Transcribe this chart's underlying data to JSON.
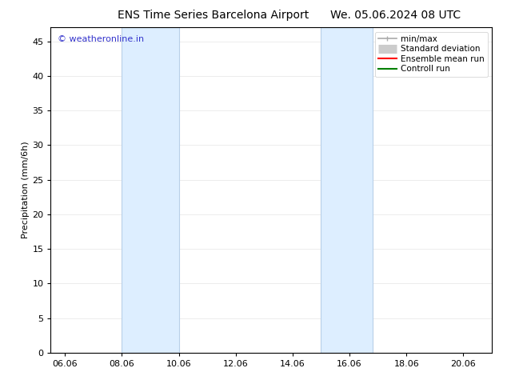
{
  "title_left": "ENS Time Series Barcelona Airport",
  "title_right": "We. 05.06.2024 08 UTC",
  "ylabel": "Precipitation (mm/6h)",
  "xlabel": "",
  "watermark": "© weatheronline.in",
  "xlim_start": 5.5,
  "xlim_end": 21.0,
  "ylim_bottom": 0,
  "ylim_top": 47,
  "yticks": [
    0,
    5,
    10,
    15,
    20,
    25,
    30,
    35,
    40,
    45
  ],
  "xtick_labels": [
    "06.06",
    "08.06",
    "10.06",
    "12.06",
    "14.06",
    "16.06",
    "18.06",
    "20.06"
  ],
  "xtick_positions": [
    6,
    8,
    10,
    12,
    14,
    16,
    18,
    20
  ],
  "shaded_regions": [
    {
      "x_start": 8.0,
      "x_end": 10.0
    },
    {
      "x_start": 15.0,
      "x_end": 16.8
    }
  ],
  "shaded_color": "#ddeeff",
  "shaded_edge_color": "#b8cfe8",
  "bg_color": "#ffffff",
  "legend_entries": [
    {
      "label": "min/max",
      "color": "#aaaaaa",
      "lw": 1.2
    },
    {
      "label": "Standard deviation",
      "color": "#cccccc",
      "lw": 8
    },
    {
      "label": "Ensemble mean run",
      "color": "#ff0000",
      "lw": 1.5
    },
    {
      "label": "Controll run",
      "color": "#008000",
      "lw": 1.5
    }
  ],
  "title_fontsize": 10,
  "axis_label_fontsize": 8,
  "tick_fontsize": 8,
  "watermark_color": "#3333cc",
  "watermark_fontsize": 8,
  "legend_fontsize": 7.5
}
